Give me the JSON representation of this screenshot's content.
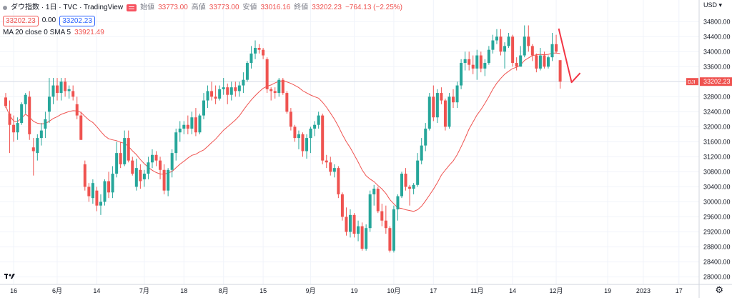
{
  "header": {
    "symbol_title": "ダウ指数 · 1日 · TVC · TradingView",
    "sell_price": "33202.23",
    "spread": "0.00",
    "buy_price": "33202.23",
    "ohlc": {
      "open_label": "始値",
      "open": "33773.00",
      "high_label": "高値",
      "high": "33773.00",
      "low_label": "安値",
      "low": "33016.16",
      "close_label": "終値",
      "close": "33202.23",
      "change": "−764.13 (−2.25%)"
    },
    "ma_label": "MA 20 close 0 SMA 5",
    "ma_value": "33921.49"
  },
  "price_axis": {
    "currency": "USD"
  },
  "settings_icon": "gear-icon",
  "colors": {
    "up": "#26a69a",
    "down": "#ef5350",
    "ma": "#ef5350",
    "arrow": "#f23645",
    "price_tag": "#ef5350"
  },
  "chart_data": {
    "type": "candlestick",
    "symbol": "DJI",
    "last_price": 33202.23,
    "ylim": [
      27800,
      34900
    ],
    "yticks": [
      28000,
      28400,
      28800,
      29200,
      29600,
      30000,
      30400,
      30800,
      31200,
      31600,
      32000,
      32400,
      32800,
      33200,
      33600,
      34000,
      34400,
      34800
    ],
    "xticks": [
      {
        "label": "16",
        "i": 2
      },
      {
        "label": "6月",
        "i": 13
      },
      {
        "label": "14",
        "i": 23
      },
      {
        "label": "7月",
        "i": 35
      },
      {
        "label": "18",
        "i": 45
      },
      {
        "label": "8月",
        "i": 55
      },
      {
        "label": "15",
        "i": 65
      },
      {
        "label": "9月",
        "i": 77
      },
      {
        "label": "19",
        "i": 88
      },
      {
        "label": "10月",
        "i": 98
      },
      {
        "label": "17",
        "i": 108
      },
      {
        "label": "11月",
        "i": 119
      },
      {
        "label": "14",
        "i": 128
      },
      {
        "label": "12月",
        "i": 139
      },
      {
        "label": "19",
        "i": 152
      },
      {
        "label": "2023",
        "i": 161
      },
      {
        "label": "17",
        "i": 170
      }
    ],
    "candles": [
      {
        "o": 32780,
        "h": 32900,
        "l": 32500,
        "c": 32550
      },
      {
        "o": 32350,
        "h": 32700,
        "l": 31300,
        "c": 32050
      },
      {
        "o": 32050,
        "h": 32300,
        "l": 31600,
        "c": 31850
      },
      {
        "o": 31850,
        "h": 32250,
        "l": 31650,
        "c": 32100
      },
      {
        "o": 32100,
        "h": 32650,
        "l": 32050,
        "c": 32600
      },
      {
        "o": 32600,
        "h": 32900,
        "l": 32350,
        "c": 32850
      },
      {
        "o": 32800,
        "h": 32950,
        "l": 31650,
        "c": 31800
      },
      {
        "o": 31450,
        "h": 31700,
        "l": 30700,
        "c": 31350
      },
      {
        "o": 31300,
        "h": 31800,
        "l": 31100,
        "c": 31700
      },
      {
        "o": 31700,
        "h": 32100,
        "l": 31500,
        "c": 31900
      },
      {
        "o": 31950,
        "h": 32400,
        "l": 31700,
        "c": 32200
      },
      {
        "o": 32400,
        "h": 33300,
        "l": 32100,
        "c": 32800
      },
      {
        "o": 32800,
        "h": 33300,
        "l": 32600,
        "c": 33100
      },
      {
        "o": 33100,
        "h": 33300,
        "l": 32700,
        "c": 32900
      },
      {
        "o": 32900,
        "h": 33300,
        "l": 32700,
        "c": 33200
      },
      {
        "o": 33200,
        "h": 33300,
        "l": 32800,
        "c": 32950
      },
      {
        "o": 32950,
        "h": 33100,
        "l": 32750,
        "c": 33000
      },
      {
        "o": 32950,
        "h": 33100,
        "l": 32700,
        "c": 32800
      },
      {
        "o": 32600,
        "h": 32800,
        "l": 32200,
        "c": 32300
      },
      {
        "o": 32300,
        "h": 32400,
        "l": 31650,
        "c": 31650
      },
      {
        "o": 31000,
        "h": 31100,
        "l": 30300,
        "c": 30400
      },
      {
        "o": 30400,
        "h": 30500,
        "l": 30000,
        "c": 30150
      },
      {
        "o": 30100,
        "h": 30600,
        "l": 29950,
        "c": 30500
      },
      {
        "o": 30300,
        "h": 30400,
        "l": 29750,
        "c": 29900
      },
      {
        "o": 29900,
        "h": 30200,
        "l": 29650,
        "c": 30000
      },
      {
        "o": 30000,
        "h": 30600,
        "l": 29900,
        "c": 30550
      },
      {
        "o": 30550,
        "h": 30800,
        "l": 30100,
        "c": 30250
      },
      {
        "o": 30250,
        "h": 30950,
        "l": 30100,
        "c": 30750
      },
      {
        "o": 30750,
        "h": 31600,
        "l": 30650,
        "c": 31300
      },
      {
        "o": 31300,
        "h": 31600,
        "l": 30900,
        "c": 31000
      },
      {
        "o": 31000,
        "h": 31900,
        "l": 30950,
        "c": 31700
      },
      {
        "o": 31700,
        "h": 31900,
        "l": 31050,
        "c": 31100
      },
      {
        "o": 31100,
        "h": 31200,
        "l": 30700,
        "c": 30750
      },
      {
        "o": 30400,
        "h": 31150,
        "l": 30300,
        "c": 30900
      },
      {
        "o": 30850,
        "h": 31000,
        "l": 30350,
        "c": 30550
      },
      {
        "o": 30600,
        "h": 30850,
        "l": 30400,
        "c": 30750
      },
      {
        "o": 30750,
        "h": 31200,
        "l": 30600,
        "c": 31050
      },
      {
        "o": 31050,
        "h": 31400,
        "l": 30900,
        "c": 31250
      },
      {
        "o": 31250,
        "h": 31350,
        "l": 30950,
        "c": 31100
      },
      {
        "o": 31100,
        "h": 31200,
        "l": 30600,
        "c": 30850
      },
      {
        "o": 30850,
        "h": 31000,
        "l": 30200,
        "c": 30300
      },
      {
        "o": 30300,
        "h": 30900,
        "l": 30150,
        "c": 30850
      },
      {
        "o": 30850,
        "h": 31400,
        "l": 30650,
        "c": 31300
      },
      {
        "o": 31300,
        "h": 31950,
        "l": 31100,
        "c": 31850
      },
      {
        "o": 31850,
        "h": 32150,
        "l": 31600,
        "c": 31950
      },
      {
        "o": 31950,
        "h": 32150,
        "l": 31800,
        "c": 32050
      },
      {
        "o": 32050,
        "h": 32300,
        "l": 31800,
        "c": 31950
      },
      {
        "o": 31950,
        "h": 32400,
        "l": 31800,
        "c": 32250
      },
      {
        "o": 32250,
        "h": 32500,
        "l": 31750,
        "c": 31850
      },
      {
        "o": 31850,
        "h": 32350,
        "l": 31800,
        "c": 32300
      },
      {
        "o": 32300,
        "h": 32900,
        "l": 32200,
        "c": 32700
      },
      {
        "o": 32700,
        "h": 33100,
        "l": 32500,
        "c": 32950
      },
      {
        "o": 32950,
        "h": 33200,
        "l": 32700,
        "c": 32800
      },
      {
        "o": 32800,
        "h": 33100,
        "l": 32600,
        "c": 32750
      },
      {
        "o": 32750,
        "h": 33100,
        "l": 32700,
        "c": 33000
      },
      {
        "o": 33000,
        "h": 33300,
        "l": 32850,
        "c": 33050
      },
      {
        "o": 33050,
        "h": 33150,
        "l": 32600,
        "c": 32850
      },
      {
        "o": 32850,
        "h": 33200,
        "l": 32700,
        "c": 33050
      },
      {
        "o": 33050,
        "h": 33200,
        "l": 32800,
        "c": 32950
      },
      {
        "o": 32950,
        "h": 33200,
        "l": 32800,
        "c": 33100
      },
      {
        "o": 33100,
        "h": 33450,
        "l": 32900,
        "c": 33250
      },
      {
        "o": 33250,
        "h": 33750,
        "l": 33200,
        "c": 33700
      },
      {
        "o": 33700,
        "h": 34150,
        "l": 33550,
        "c": 33950
      },
      {
        "o": 33950,
        "h": 34300,
        "l": 33800,
        "c": 34100
      },
      {
        "o": 34100,
        "h": 34200,
        "l": 33950,
        "c": 34050
      },
      {
        "o": 34050,
        "h": 34100,
        "l": 33800,
        "c": 33900
      },
      {
        "o": 33800,
        "h": 33850,
        "l": 32900,
        "c": 33000
      },
      {
        "o": 33000,
        "h": 33050,
        "l": 32700,
        "c": 32950
      },
      {
        "o": 32950,
        "h": 33050,
        "l": 32750,
        "c": 32900
      },
      {
        "o": 32900,
        "h": 33300,
        "l": 32800,
        "c": 33250
      },
      {
        "o": 33250,
        "h": 33300,
        "l": 32850,
        "c": 32900
      },
      {
        "o": 32900,
        "h": 32950,
        "l": 32350,
        "c": 32400
      },
      {
        "o": 32400,
        "h": 32500,
        "l": 31900,
        "c": 32000
      },
      {
        "o": 32000,
        "h": 32050,
        "l": 31600,
        "c": 31700
      },
      {
        "o": 31700,
        "h": 31900,
        "l": 31400,
        "c": 31800
      },
      {
        "o": 31800,
        "h": 31850,
        "l": 31200,
        "c": 31350
      },
      {
        "o": 31350,
        "h": 31800,
        "l": 31150,
        "c": 31700
      },
      {
        "o": 31700,
        "h": 32000,
        "l": 31300,
        "c": 31950
      },
      {
        "o": 31950,
        "h": 32150,
        "l": 31750,
        "c": 32050
      },
      {
        "o": 32050,
        "h": 32400,
        "l": 31950,
        "c": 32300
      },
      {
        "o": 32300,
        "h": 32350,
        "l": 31000,
        "c": 31100
      },
      {
        "o": 31100,
        "h": 31250,
        "l": 30900,
        "c": 31050
      },
      {
        "o": 31050,
        "h": 31200,
        "l": 30700,
        "c": 30800
      },
      {
        "o": 30800,
        "h": 31000,
        "l": 30650,
        "c": 30900
      },
      {
        "o": 30900,
        "h": 30950,
        "l": 30100,
        "c": 30200
      },
      {
        "o": 30200,
        "h": 30250,
        "l": 29500,
        "c": 29600
      },
      {
        "o": 29600,
        "h": 29850,
        "l": 29100,
        "c": 29200
      },
      {
        "o": 29200,
        "h": 29800,
        "l": 29050,
        "c": 29650
      },
      {
        "o": 29650,
        "h": 29700,
        "l": 29050,
        "c": 29150
      },
      {
        "o": 29150,
        "h": 29500,
        "l": 28950,
        "c": 29350
      },
      {
        "o": 29350,
        "h": 29450,
        "l": 28700,
        "c": 28750
      },
      {
        "o": 28750,
        "h": 29400,
        "l": 28700,
        "c": 29300
      },
      {
        "o": 29300,
        "h": 30300,
        "l": 29200,
        "c": 30200
      },
      {
        "o": 30200,
        "h": 30450,
        "l": 29900,
        "c": 30350
      },
      {
        "o": 30350,
        "h": 30400,
        "l": 29700,
        "c": 29750
      },
      {
        "o": 29750,
        "h": 29950,
        "l": 29350,
        "c": 29500
      },
      {
        "o": 29500,
        "h": 29900,
        "l": 29150,
        "c": 29300
      },
      {
        "o": 29300,
        "h": 29350,
        "l": 28650,
        "c": 28700
      },
      {
        "o": 28700,
        "h": 29900,
        "l": 28650,
        "c": 29800
      },
      {
        "o": 29800,
        "h": 30200,
        "l": 29500,
        "c": 30150
      },
      {
        "o": 30150,
        "h": 30800,
        "l": 30100,
        "c": 30750
      },
      {
        "o": 30750,
        "h": 30900,
        "l": 30300,
        "c": 30400
      },
      {
        "o": 30400,
        "h": 30450,
        "l": 29900,
        "c": 30350
      },
      {
        "o": 30350,
        "h": 30500,
        "l": 30200,
        "c": 30450
      },
      {
        "o": 30450,
        "h": 31300,
        "l": 30400,
        "c": 31100
      },
      {
        "o": 31100,
        "h": 31700,
        "l": 31000,
        "c": 31500
      },
      {
        "o": 31500,
        "h": 32100,
        "l": 31350,
        "c": 31950
      },
      {
        "o": 31950,
        "h": 32900,
        "l": 31900,
        "c": 32800
      },
      {
        "o": 32800,
        "h": 33100,
        "l": 32150,
        "c": 32250
      },
      {
        "o": 32250,
        "h": 33000,
        "l": 32100,
        "c": 32900
      },
      {
        "o": 32900,
        "h": 33050,
        "l": 32600,
        "c": 32700
      },
      {
        "o": 32700,
        "h": 32750,
        "l": 31900,
        "c": 32000
      },
      {
        "o": 32000,
        "h": 32900,
        "l": 31950,
        "c": 32800
      },
      {
        "o": 32800,
        "h": 33000,
        "l": 32500,
        "c": 32650
      },
      {
        "o": 32650,
        "h": 33200,
        "l": 32500,
        "c": 33100
      },
      {
        "o": 33100,
        "h": 33800,
        "l": 33000,
        "c": 33700
      },
      {
        "o": 33700,
        "h": 34000,
        "l": 33500,
        "c": 33800
      },
      {
        "o": 33800,
        "h": 34000,
        "l": 33500,
        "c": 33650
      },
      {
        "o": 33650,
        "h": 33900,
        "l": 33400,
        "c": 33550
      },
      {
        "o": 33550,
        "h": 34050,
        "l": 33250,
        "c": 33900
      },
      {
        "o": 33900,
        "h": 34000,
        "l": 33450,
        "c": 33550
      },
      {
        "o": 33550,
        "h": 33800,
        "l": 33350,
        "c": 33700
      },
      {
        "o": 33700,
        "h": 34150,
        "l": 33650,
        "c": 34050
      },
      {
        "o": 34050,
        "h": 34450,
        "l": 33950,
        "c": 34300
      },
      {
        "o": 34300,
        "h": 34600,
        "l": 34200,
        "c": 34400
      },
      {
        "o": 34400,
        "h": 34600,
        "l": 33900,
        "c": 34000
      },
      {
        "o": 34000,
        "h": 34250,
        "l": 33550,
        "c": 34150
      },
      {
        "o": 34150,
        "h": 34500,
        "l": 34100,
        "c": 34400
      },
      {
        "o": 34400,
        "h": 34450,
        "l": 33600,
        "c": 33700
      },
      {
        "o": 33700,
        "h": 33850,
        "l": 33500,
        "c": 33600
      },
      {
        "o": 33600,
        "h": 34150,
        "l": 33600,
        "c": 33900
      },
      {
        "o": 33900,
        "h": 34700,
        "l": 33850,
        "c": 34400
      },
      {
        "o": 34400,
        "h": 34700,
        "l": 34000,
        "c": 34150
      },
      {
        "o": 34150,
        "h": 34200,
        "l": 33750,
        "c": 33900
      },
      {
        "o": 33900,
        "h": 33950,
        "l": 33450,
        "c": 33550
      },
      {
        "o": 33550,
        "h": 34100,
        "l": 33500,
        "c": 33900
      },
      {
        "o": 33900,
        "h": 34000,
        "l": 33550,
        "c": 33600
      },
      {
        "o": 33600,
        "h": 33900,
        "l": 33550,
        "c": 33850
      },
      {
        "o": 33850,
        "h": 34500,
        "l": 33750,
        "c": 34200
      },
      {
        "o": 34200,
        "h": 34450,
        "l": 33950,
        "c": 34000
      },
      {
        "o": 33773,
        "h": 33773,
        "l": 33016,
        "c": 33202
      }
    ],
    "ma_period": 20
  }
}
